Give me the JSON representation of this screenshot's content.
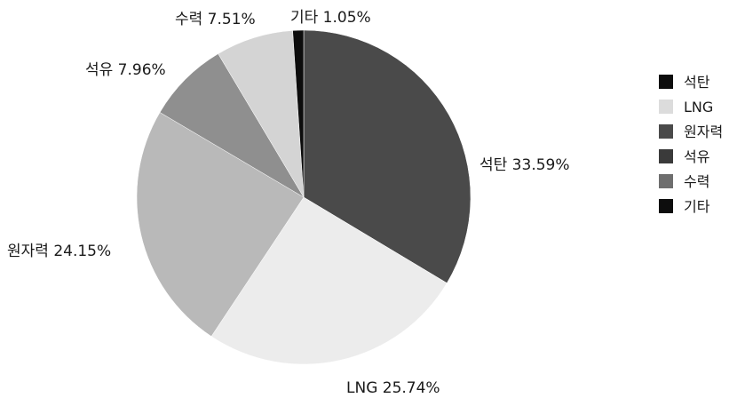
{
  "chart_data": {
    "type": "pie",
    "title": "",
    "unit": "%",
    "legend_position": "right",
    "slices": [
      {
        "name": "석탄",
        "value": 33.59,
        "label": "석탄 33.59%",
        "color": "#4a4a4a"
      },
      {
        "name": "LNG",
        "value": 25.74,
        "label": "LNG 25.74%",
        "color": "#ececec"
      },
      {
        "name": "원자력",
        "value": 24.15,
        "label": "원자력 24.15%",
        "color": "#b9b9b9"
      },
      {
        "name": "석유",
        "value": 7.96,
        "label": "석유 7.96%",
        "color": "#8f8f8f"
      },
      {
        "name": "수력",
        "value": 7.51,
        "label": "수력 7.51%",
        "color": "#d4d4d4"
      },
      {
        "name": "기타",
        "value": 1.05,
        "label": "기타 1.05%",
        "color": "#0d0d0d"
      }
    ],
    "legend": [
      {
        "name": "석탄",
        "color": "#0d0d0d"
      },
      {
        "name": "LNG",
        "color": "#dcdcdc"
      },
      {
        "name": "원자력",
        "color": "#4a4a4a"
      },
      {
        "name": "석유",
        "color": "#3a3a3a"
      },
      {
        "name": "수력",
        "color": "#6e6e6e"
      },
      {
        "name": "기타",
        "color": "#0d0d0d"
      }
    ]
  }
}
